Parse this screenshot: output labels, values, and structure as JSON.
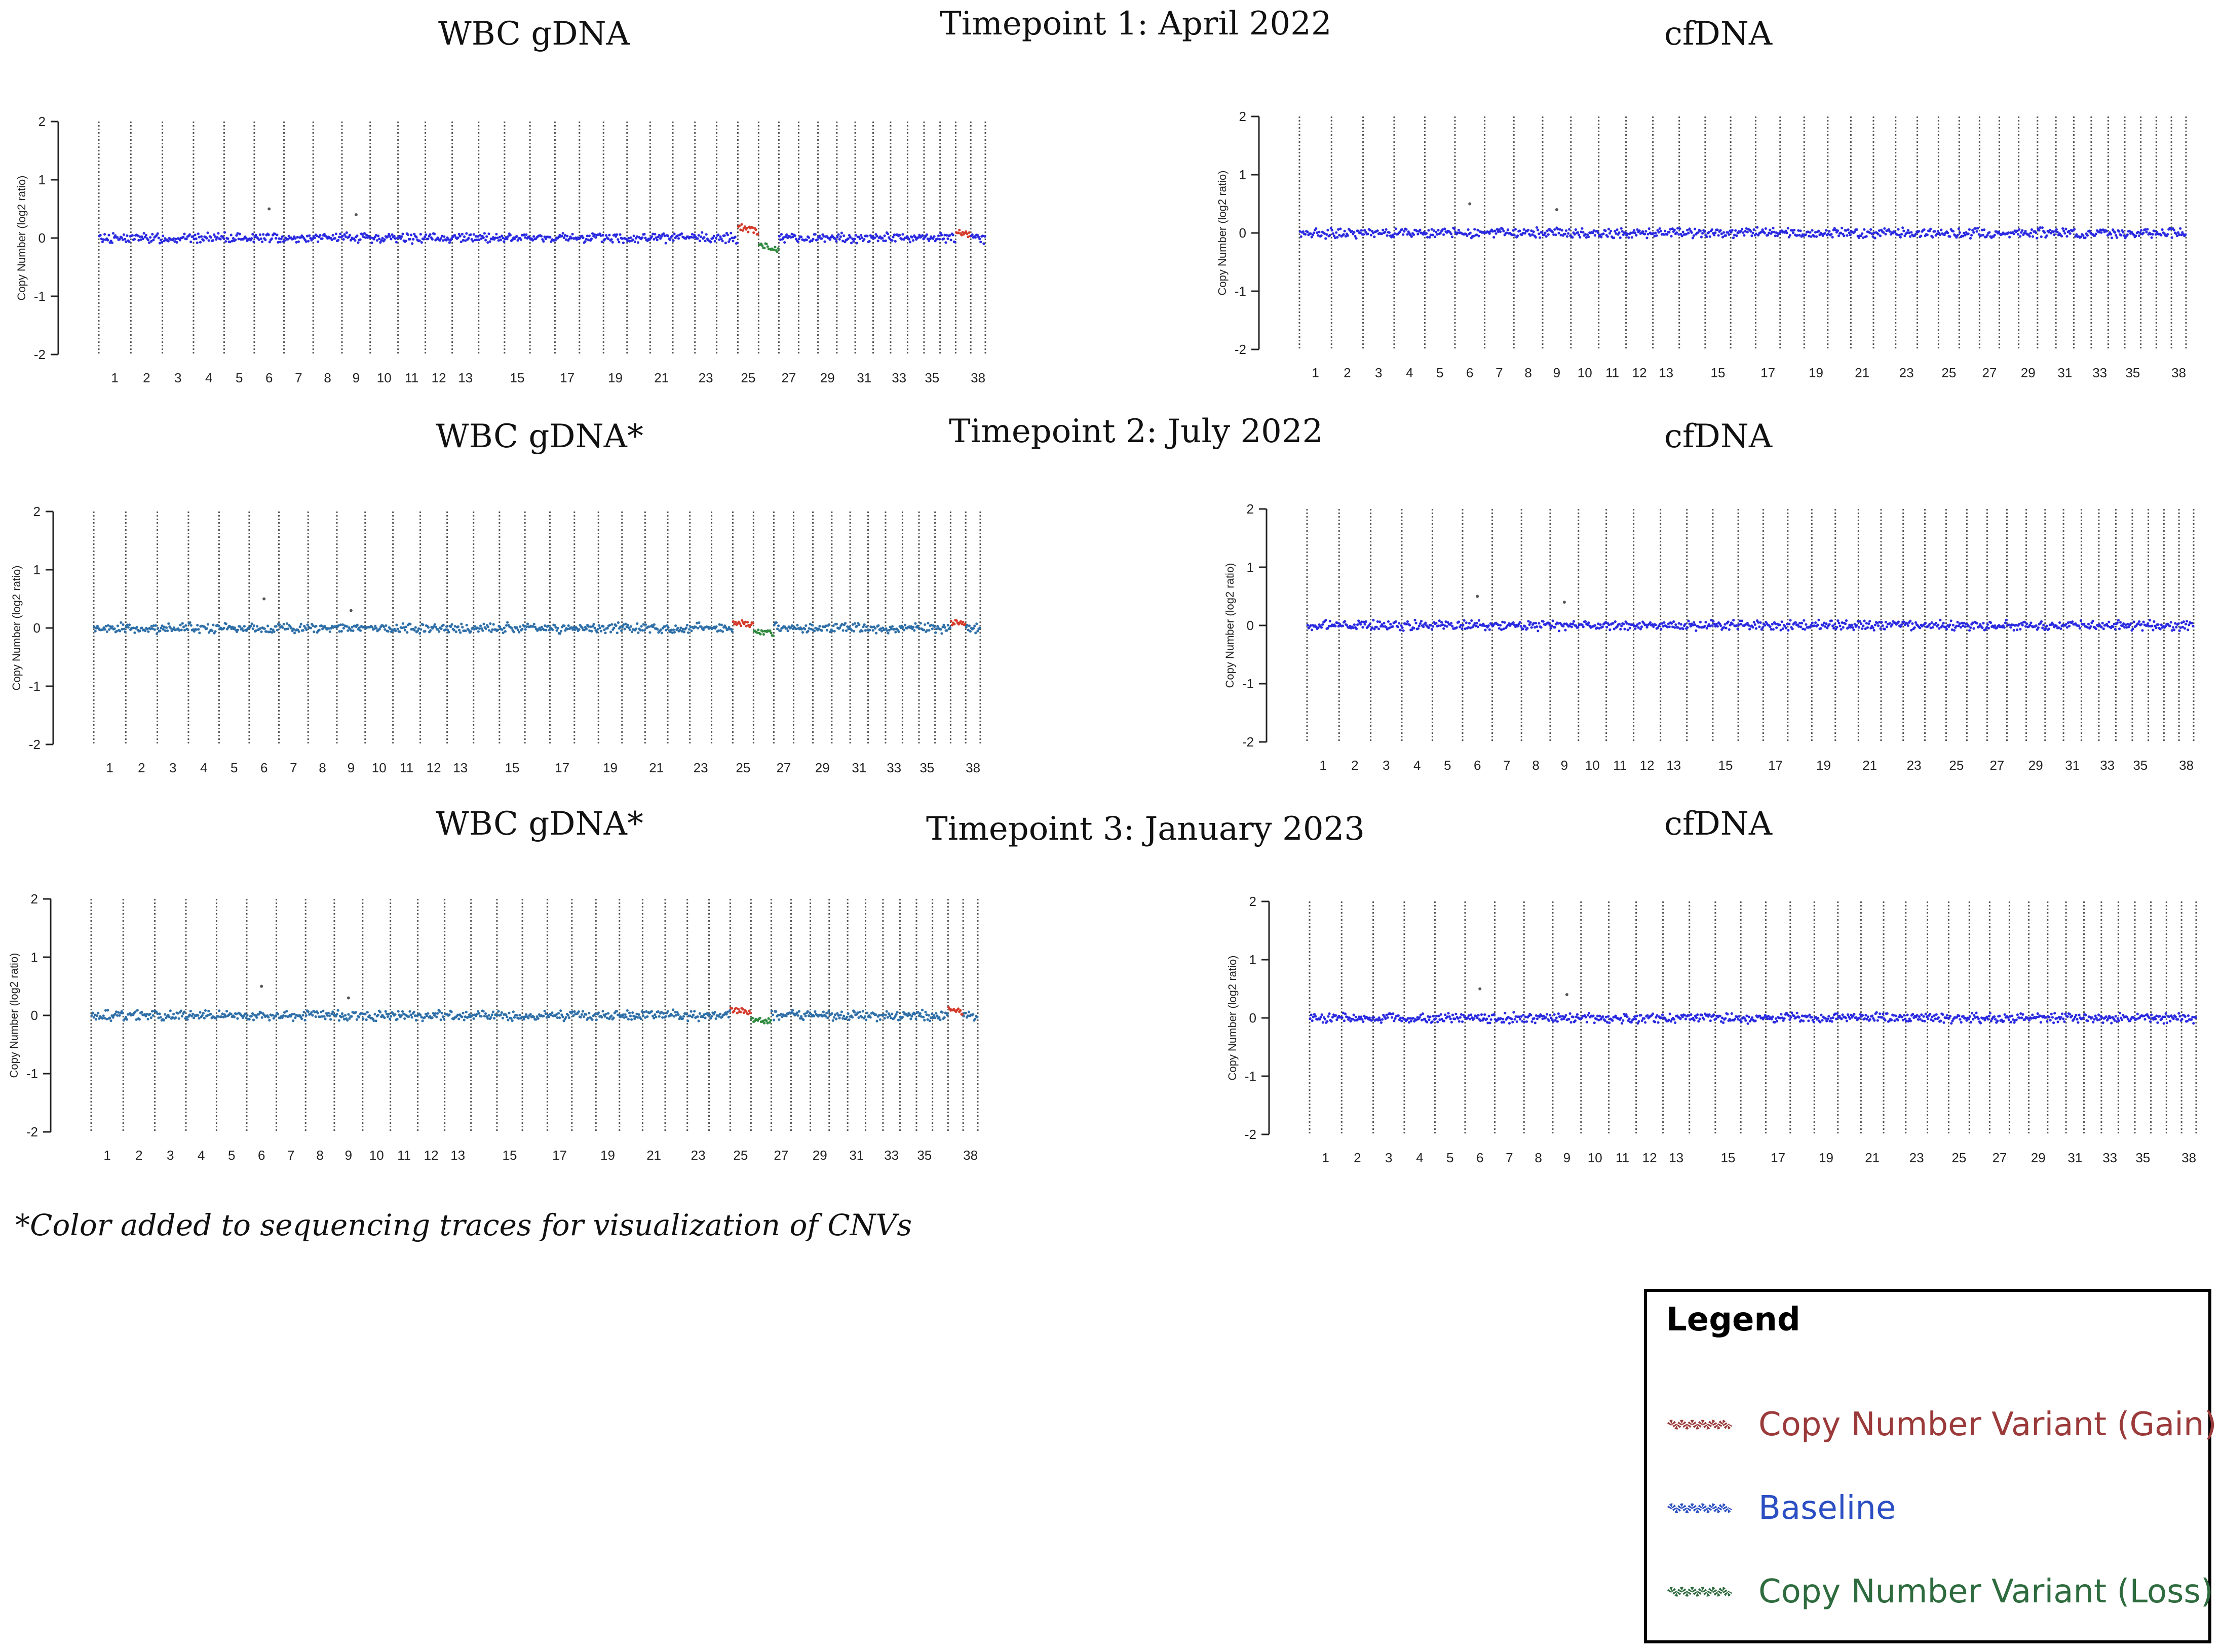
{
  "timepoints": [
    {
      "label": "Timepoint 1: April 2022"
    },
    {
      "label": "Timepoint 2: July 2022"
    },
    {
      "label": "Timepoint 3: January 2023"
    }
  ],
  "panel_titles": [
    "WBC gDNA",
    "cfDNA",
    "WBC gDNA*",
    "cfDNA",
    "WBC gDNA*",
    "cfDNA"
  ],
  "footnote": "*Color added to sequencing traces for visualization of CNVs",
  "legend": {
    "title": "Legend",
    "items": [
      {
        "label": "Copy Number Variant (Gain)",
        "color": "#9b3a3a"
      },
      {
        "label": "Baseline",
        "color": "#2b4fc2"
      },
      {
        "label": "Copy Number Variant (Loss)",
        "color": "#2e6b3e"
      }
    ]
  },
  "colors": {
    "baseline_blue": "#2a2ae0",
    "baseline_teal": "#2f6fa8",
    "gain": "#d43a2a",
    "loss": "#2e8a3e",
    "axis": "#222222"
  },
  "chart_data": [
    {
      "type": "scatter",
      "panel": "Timepoint 1 WBC gDNA",
      "title": "WBC gDNA",
      "ylabel": "Copy Number (log2 ratio)",
      "xlabel": "",
      "ylim": [
        -2,
        2
      ],
      "y_ticks": [
        2,
        1,
        0,
        -1,
        -2
      ],
      "x_tick_labels": [
        "1",
        "2",
        "3",
        "4",
        "5",
        "6",
        "7",
        "8",
        "9",
        "10",
        "11",
        "12",
        "13",
        "15",
        "17",
        "19",
        "21",
        "23",
        "25",
        "27",
        "29",
        "31",
        "33",
        "35",
        "38"
      ],
      "chromosomes": 38,
      "trace_style": "blue",
      "baseline": 0,
      "cnv_segments": [
        {
          "chromosome": 25,
          "type": "gain",
          "log2_ratio": 0.2
        },
        {
          "chromosome": 26,
          "type": "loss",
          "log2_ratio": -0.2
        },
        {
          "chromosome": 37,
          "type": "gain",
          "log2_ratio": 0.1
        }
      ],
      "outliers": [
        {
          "chromosome": 6,
          "log2_ratio": 0.5
        },
        {
          "chromosome": 9,
          "log2_ratio": 0.4
        }
      ]
    },
    {
      "type": "scatter",
      "panel": "Timepoint 1 cfDNA",
      "title": "cfDNA",
      "ylabel": "Copy Number (log2 ratio)",
      "xlabel": "",
      "ylim": [
        -2,
        2
      ],
      "y_ticks": [
        2,
        1,
        0,
        -1,
        -2
      ],
      "x_tick_labels": [
        "1",
        "2",
        "3",
        "4",
        "5",
        "6",
        "7",
        "8",
        "9",
        "10",
        "11",
        "12",
        "13",
        "15",
        "17",
        "19",
        "21",
        "23",
        "25",
        "27",
        "29",
        "31",
        "33",
        "35",
        "38"
      ],
      "chromosomes": 38,
      "trace_style": "blue",
      "baseline": 0,
      "cnv_segments": [],
      "outliers": [
        {
          "chromosome": 6,
          "log2_ratio": 0.5
        },
        {
          "chromosome": 9,
          "log2_ratio": 0.4
        }
      ]
    },
    {
      "type": "scatter",
      "panel": "Timepoint 2 WBC gDNA*",
      "title": "WBC gDNA*",
      "ylabel": "Copy Number (log2 ratio)",
      "xlabel": "",
      "ylim": [
        -2,
        2
      ],
      "y_ticks": [
        2,
        1,
        0,
        -1,
        -2
      ],
      "x_tick_labels": [
        "1",
        "2",
        "3",
        "4",
        "5",
        "6",
        "7",
        "8",
        "9",
        "10",
        "11",
        "12",
        "13",
        "15",
        "17",
        "19",
        "21",
        "23",
        "25",
        "27",
        "29",
        "31",
        "33",
        "35",
        "38"
      ],
      "chromosomes": 38,
      "trace_style": "teal",
      "baseline": 0,
      "cnv_segments": [
        {
          "chromosome": 25,
          "type": "gain",
          "log2_ratio": 0.1
        },
        {
          "chromosome": 26,
          "type": "loss",
          "log2_ratio": -0.1
        },
        {
          "chromosome": 37,
          "type": "gain",
          "log2_ratio": 0.1
        }
      ],
      "outliers": [
        {
          "chromosome": 6,
          "log2_ratio": 0.5
        },
        {
          "chromosome": 9,
          "log2_ratio": 0.3
        }
      ]
    },
    {
      "type": "scatter",
      "panel": "Timepoint 2 cfDNA",
      "title": "cfDNA",
      "ylabel": "Copy Number (log2 ratio)",
      "xlabel": "",
      "ylim": [
        -2,
        2
      ],
      "y_ticks": [
        2,
        1,
        0,
        -1,
        -2
      ],
      "x_tick_labels": [
        "1",
        "2",
        "3",
        "4",
        "5",
        "6",
        "7",
        "8",
        "9",
        "10",
        "11",
        "12",
        "13",
        "15",
        "17",
        "19",
        "21",
        "23",
        "25",
        "27",
        "29",
        "31",
        "33",
        "35",
        "38"
      ],
      "chromosomes": 38,
      "trace_style": "blue",
      "baseline": 0,
      "cnv_segments": [],
      "outliers": [
        {
          "chromosome": 6,
          "log2_ratio": 0.5
        },
        {
          "chromosome": 9,
          "log2_ratio": 0.4
        }
      ]
    },
    {
      "type": "scatter",
      "panel": "Timepoint 3 WBC gDNA*",
      "title": "WBC gDNA*",
      "ylabel": "Copy Number (log2 ratio)",
      "xlabel": "",
      "ylim": [
        -2,
        2
      ],
      "y_ticks": [
        2,
        1,
        0,
        -1,
        -2
      ],
      "x_tick_labels": [
        "1",
        "2",
        "3",
        "4",
        "5",
        "6",
        "7",
        "8",
        "9",
        "10",
        "11",
        "12",
        "13",
        "15",
        "17",
        "19",
        "21",
        "23",
        "25",
        "27",
        "29",
        "31",
        "33",
        "35",
        "38"
      ],
      "chromosomes": 38,
      "trace_style": "teal",
      "baseline": 0,
      "cnv_segments": [
        {
          "chromosome": 25,
          "type": "gain",
          "log2_ratio": 0.1
        },
        {
          "chromosome": 26,
          "type": "loss",
          "log2_ratio": -0.1
        },
        {
          "chromosome": 37,
          "type": "gain",
          "log2_ratio": 0.1
        }
      ],
      "outliers": [
        {
          "chromosome": 6,
          "log2_ratio": 0.5
        },
        {
          "chromosome": 9,
          "log2_ratio": 0.3
        }
      ]
    },
    {
      "type": "scatter",
      "panel": "Timepoint 3 cfDNA",
      "title": "cfDNA",
      "ylabel": "Copy Number (log2 ratio)",
      "xlabel": "",
      "ylim": [
        -2,
        2
      ],
      "y_ticks": [
        2,
        1,
        0,
        -1,
        -2
      ],
      "x_tick_labels": [
        "1",
        "2",
        "3",
        "4",
        "5",
        "6",
        "7",
        "8",
        "9",
        "10",
        "11",
        "12",
        "13",
        "15",
        "17",
        "19",
        "21",
        "23",
        "25",
        "27",
        "29",
        "31",
        "33",
        "35",
        "38"
      ],
      "chromosomes": 38,
      "trace_style": "blue",
      "baseline": 0,
      "cnv_segments": [],
      "outliers": [
        {
          "chromosome": 6,
          "log2_ratio": 0.5
        },
        {
          "chromosome": 9,
          "log2_ratio": 0.4
        }
      ]
    }
  ]
}
